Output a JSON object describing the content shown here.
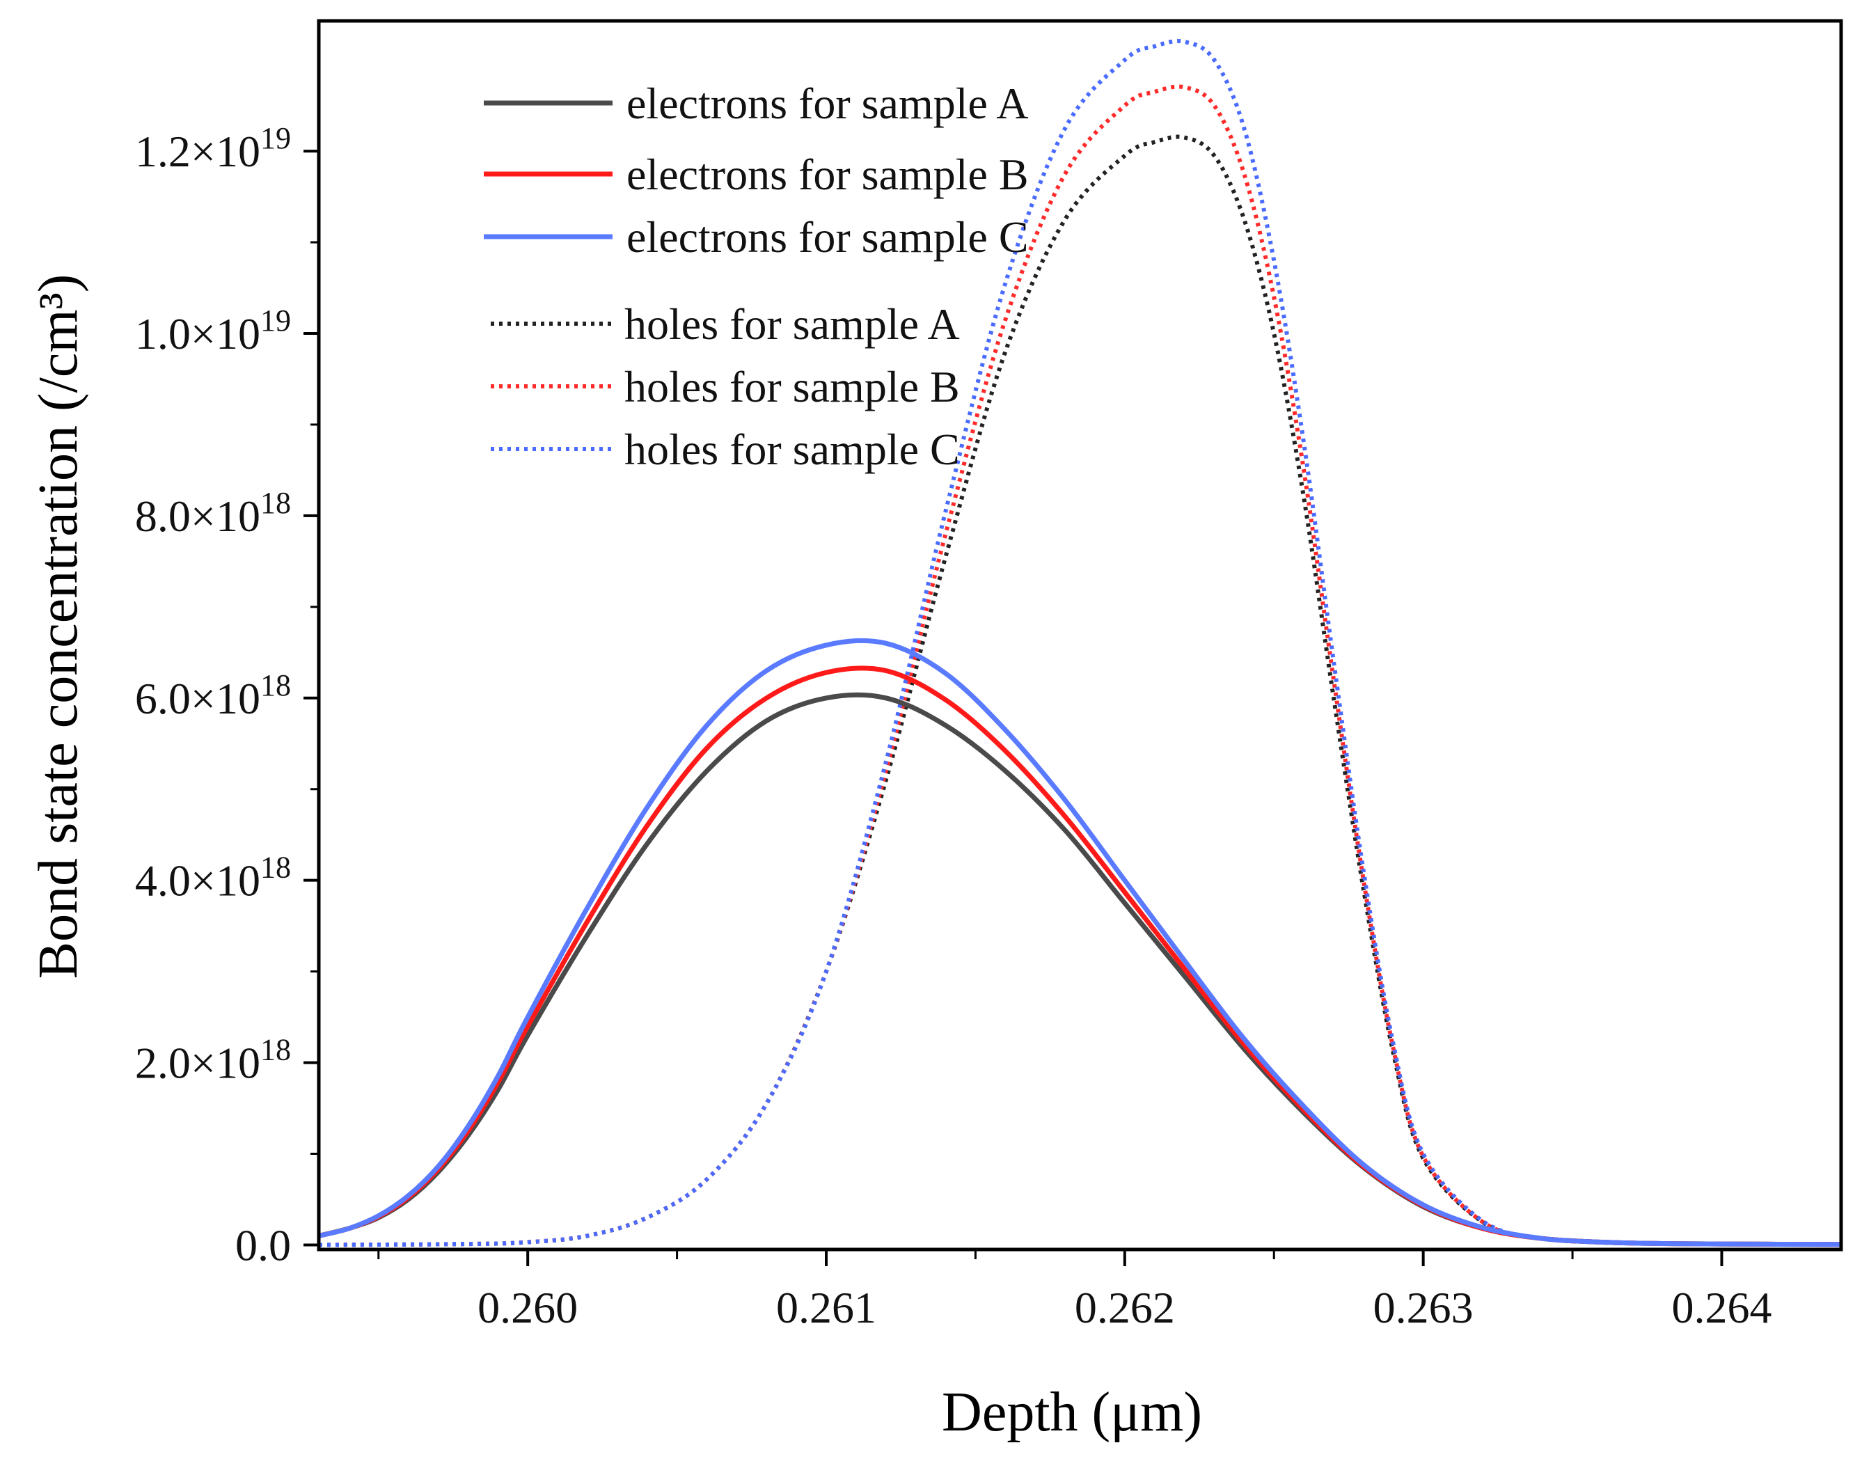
{
  "chart_data": {
    "type": "line",
    "xlabel": "Depth (μm)",
    "ylabel": "Bond state concentration (/cm³)",
    "xlim": [
      0.2593,
      0.2644
    ],
    "ylim": [
      -5e+16,
      1.32e+19
    ],
    "x_ticks": [
      {
        "value": 0.26,
        "label": "0.260"
      },
      {
        "value": 0.261,
        "label": "0.261"
      },
      {
        "value": 0.262,
        "label": "0.262"
      },
      {
        "value": 0.263,
        "label": "0.263"
      },
      {
        "value": 0.264,
        "label": "0.264"
      }
    ],
    "y_ticks": [
      {
        "value": 0,
        "mantissa": "0.0",
        "exponent": ""
      },
      {
        "value": 2e+18,
        "mantissa": "2.0×10",
        "exponent": "18"
      },
      {
        "value": 4e+18,
        "mantissa": "4.0×10",
        "exponent": "18"
      },
      {
        "value": 6e+18,
        "mantissa": "6.0×10",
        "exponent": "18"
      },
      {
        "value": 8e+18,
        "mantissa": "8.0×10",
        "exponent": "18"
      },
      {
        "value": 1e+19,
        "mantissa": "1.0×10",
        "exponent": "19"
      },
      {
        "value": 1.2e+19,
        "mantissa": "1.2×10",
        "exponent": "19"
      }
    ],
    "series": [
      {
        "name": "electrons for sample A",
        "style": "solid",
        "color": "#4a4a4a",
        "x": [
          0.2593,
          0.2594,
          0.2595,
          0.2596,
          0.2597,
          0.2598,
          0.2599,
          0.26,
          0.2602,
          0.2604,
          0.2606,
          0.2608,
          0.261,
          0.2612,
          0.2614,
          0.2616,
          0.2618,
          0.262,
          0.2622,
          0.2624,
          0.2626,
          0.2628,
          0.263,
          0.2632,
          0.2634,
          0.2636,
          0.2638,
          0.264,
          0.2644
        ],
        "values": [
          1e+17,
          1.8e+17,
          3e+17,
          5e+17,
          8e+17,
          1.2e+18,
          1.7e+18,
          2.3e+18,
          3.4e+18,
          4.4e+18,
          5.2e+18,
          5.75e+18,
          6e+18,
          6e+18,
          5.7e+18,
          5.2e+18,
          4.55e+18,
          3.75e+18,
          2.95e+18,
          2.15e+18,
          1.45e+18,
          8.5e+17,
          4.2e+17,
          1.8e+17,
          7e+16,
          3e+16,
          1.5e+16,
          1e+16,
          5000000000000000.0
        ]
      },
      {
        "name": "electrons for sample B",
        "style": "solid",
        "color": "#ff1a1a",
        "x": [
          0.2593,
          0.2594,
          0.2595,
          0.2596,
          0.2597,
          0.2598,
          0.2599,
          0.26,
          0.2602,
          0.2604,
          0.2606,
          0.2608,
          0.261,
          0.2612,
          0.2614,
          0.2616,
          0.2618,
          0.262,
          0.2622,
          0.2624,
          0.2626,
          0.2628,
          0.263,
          0.2632,
          0.2634,
          0.2636,
          0.2638,
          0.264,
          0.2644
        ],
        "values": [
          1e+17,
          1.8e+17,
          3.1e+17,
          5.2e+17,
          8.3e+17,
          1.25e+18,
          1.78e+18,
          2.4e+18,
          3.55e+18,
          4.6e+18,
          5.45e+18,
          6e+18,
          6.28e+18,
          6.3e+18,
          5.98e+18,
          5.42e+18,
          4.7e+18,
          3.87e+18,
          3.03e+18,
          2.2e+18,
          1.48e+18,
          8.6e+17,
          4.3e+17,
          1.8e+17,
          7e+16,
          3e+16,
          1.5e+16,
          1e+16,
          5000000000000000.0
        ]
      },
      {
        "name": "electrons for sample C",
        "style": "solid",
        "color": "#5a7bff",
        "x": [
          0.2593,
          0.2594,
          0.2595,
          0.2596,
          0.2597,
          0.2598,
          0.2599,
          0.26,
          0.2602,
          0.2604,
          0.2606,
          0.2608,
          0.261,
          0.2612,
          0.2614,
          0.2616,
          0.2618,
          0.262,
          0.2622,
          0.2624,
          0.2626,
          0.2628,
          0.263,
          0.2632,
          0.2634,
          0.2636,
          0.2638,
          0.264,
          0.2644
        ],
        "values": [
          1e+17,
          1.8e+17,
          3.2e+17,
          5.4e+17,
          8.6e+17,
          1.3e+18,
          1.85e+18,
          2.5e+18,
          3.7e+18,
          4.8e+18,
          5.7e+18,
          6.3e+18,
          6.58e+18,
          6.6e+18,
          6.27e+18,
          5.65e+18,
          4.88e+18,
          4e+18,
          3.12e+18,
          2.26e+18,
          1.52e+18,
          8.8e+17,
          4.4e+17,
          1.9e+17,
          7e+16,
          3e+16,
          1.5e+16,
          1e+16,
          5000000000000000.0
        ]
      },
      {
        "name": "holes for sample A",
        "style": "dotted",
        "color": "#222222",
        "x": [
          0.2593,
          0.2598,
          0.26,
          0.2602,
          0.2604,
          0.2606,
          0.2608,
          0.261,
          0.2612,
          0.2614,
          0.2616,
          0.2618,
          0.262,
          0.2621,
          0.2622,
          0.2623,
          0.2624,
          0.2625,
          0.2626,
          0.2627,
          0.2628,
          0.2629,
          0.263,
          0.2632,
          0.2634,
          0.2636,
          0.2638,
          0.264,
          0.2644
        ],
        "values": [
          0,
          1e+16,
          3e+16,
          1e+17,
          3e+17,
          7.2e+17,
          1.55e+18,
          3e+18,
          5.1e+18,
          7.55e+18,
          9.8e+18,
          1.125e+19,
          1.195e+19,
          1.21e+19,
          1.215e+19,
          1.195e+19,
          1.125e+19,
          1e+19,
          8.2e+18,
          6e+18,
          3.9e+18,
          2.1e+18,
          9.5e+17,
          2.5e+17,
          7e+16,
          3e+16,
          1.5e+16,
          1e+16,
          5000000000000000.0
        ]
      },
      {
        "name": "holes for sample B",
        "style": "dotted",
        "color": "#ff2a2a",
        "x": [
          0.2593,
          0.2598,
          0.26,
          0.2602,
          0.2604,
          0.2606,
          0.2608,
          0.261,
          0.2612,
          0.2614,
          0.2616,
          0.2618,
          0.262,
          0.2621,
          0.2622,
          0.2623,
          0.2624,
          0.2625,
          0.2626,
          0.2627,
          0.2628,
          0.2629,
          0.263,
          0.2632,
          0.2634,
          0.2636,
          0.2638,
          0.264,
          0.2644
        ],
        "values": [
          0,
          1e+16,
          3e+16,
          1e+17,
          3e+17,
          7.2e+17,
          1.55e+18,
          3e+18,
          5.2e+18,
          7.8e+18,
          1.015e+19,
          1.175e+19,
          1.25e+19,
          1.265e+19,
          1.27e+19,
          1.25e+19,
          1.175e+19,
          1.04e+19,
          8.5e+18,
          6.2e+18,
          4e+18,
          2.15e+18,
          9.7e+17,
          2.5e+17,
          7e+16,
          3e+16,
          1.5e+16,
          1e+16,
          5000000000000000.0
        ]
      },
      {
        "name": "holes for sample C",
        "style": "dotted",
        "color": "#4a6bff",
        "x": [
          0.2593,
          0.2598,
          0.26,
          0.2602,
          0.2604,
          0.2606,
          0.2608,
          0.261,
          0.2612,
          0.2614,
          0.2616,
          0.2618,
          0.262,
          0.2621,
          0.2622,
          0.2623,
          0.2624,
          0.2625,
          0.2626,
          0.2627,
          0.2628,
          0.2629,
          0.263,
          0.2632,
          0.2634,
          0.2636,
          0.2638,
          0.264,
          0.2644
        ],
        "values": [
          0,
          1e+16,
          3e+16,
          1e+17,
          3e+17,
          7.2e+17,
          1.55e+18,
          3e+18,
          5.3e+18,
          8.05e+18,
          1.055e+19,
          1.225e+19,
          1.3e+19,
          1.315e+19,
          1.32e+19,
          1.3e+19,
          1.225e+19,
          1.08e+19,
          8.8e+18,
          6.4e+18,
          4.1e+18,
          2.2e+18,
          1e+18,
          2.6e+17,
          7e+16,
          3e+16,
          1.5e+16,
          1e+16,
          5000000000000000.0
        ]
      }
    ]
  }
}
